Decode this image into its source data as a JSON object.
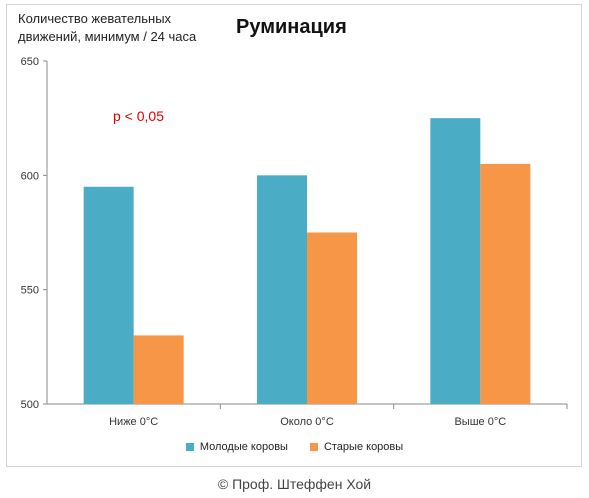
{
  "chart_data": {
    "type": "bar",
    "title": "Руминация",
    "ylabel": "Количество жевательных\nдвижений, минимум / 24 часа",
    "xlabel": "",
    "categories": [
      "Ниже 0°C",
      "Около 0°C",
      "Выше 0°C"
    ],
    "series": [
      {
        "name": "Молодые коровы",
        "values": [
          595,
          600,
          625
        ],
        "color": "#4bacc6"
      },
      {
        "name": "Старые коровы",
        "values": [
          530,
          575,
          605
        ],
        "color": "#f79646"
      }
    ],
    "ylim": [
      500,
      650
    ],
    "yticks": [
      500,
      550,
      600,
      650
    ],
    "grid": false,
    "legend_position": "bottom",
    "annotation": "p < 0,05"
  },
  "footer": "© Проф. Штеффен Хой"
}
